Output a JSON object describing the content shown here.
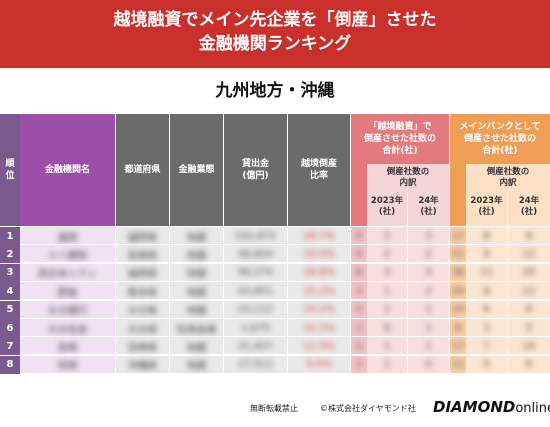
{
  "title": {
    "line1": "越境融資でメイン先企業を「倒産」させた",
    "line2": "金融機関ランキング"
  },
  "region": "九州地方・沖縄",
  "headers": {
    "rank": "順位",
    "name": "金融機関名",
    "pref": "都道府県",
    "type": "金融業態",
    "loans": "貸出金\n(億円)",
    "ratio": "越境倒産\n比率",
    "group1": "「越境融資」で\n倒産させた社数の\n合計(社)",
    "group1_sub": "倒産社数の\n内訳",
    "group2": "メインバンクとして\n倒産させた社数の\n合計(社)",
    "group2_sub": "倒産社数の\n内訳",
    "year_2023": "2023年\n(社)",
    "year_24": "24年\n(社)"
  },
  "rows": [
    {
      "rank": "1",
      "name": "福岡",
      "pref": "福岡県",
      "type": "地銀",
      "loans": "152,872",
      "ratio": "28.7%",
      "g1": "5",
      "g1a": "2",
      "g1b": "3",
      "g2": "17",
      "g2a": "8",
      "g2b": "9"
    },
    {
      "rank": "2",
      "name": "十八親和",
      "pref": "長崎県",
      "type": "地銀",
      "loans": "46,824",
      "ratio": "19.0%",
      "g1": "4",
      "g1a": "2",
      "g1b": "2",
      "g2": "21",
      "g2a": "9",
      "g2b": "12"
    },
    {
      "rank": "3",
      "name": "西日本シティ",
      "pref": "福岡県",
      "type": "地銀",
      "loans": "90,274",
      "ratio": "16.8%",
      "g1": "6",
      "g1a": "3",
      "g1b": "3",
      "g2": "36",
      "g2a": "11",
      "g2b": "25"
    },
    {
      "rank": "4",
      "name": "肥後",
      "pref": "熊本県",
      "type": "地銀",
      "loans": "43,651",
      "ratio": "15.2%",
      "g1": "3",
      "g1a": "1",
      "g1b": "2",
      "g2": "20",
      "g2a": "8",
      "g2b": "12"
    },
    {
      "rank": "5",
      "name": "大分銀行",
      "pref": "大分県",
      "type": "地銀",
      "loans": "23,112",
      "ratio": "14.2%",
      "g1": "2",
      "g1a": "1",
      "g1b": "1",
      "g2": "14",
      "g2a": "6",
      "g2b": "8"
    },
    {
      "rank": "6",
      "name": "大分信金",
      "pref": "大分県",
      "type": "信用金庫",
      "loans": "1,675",
      "ratio": "12.1%",
      "g1": "1",
      "g1a": "0",
      "g1b": "1",
      "g2": "8",
      "g2a": "3",
      "g2b": "5"
    },
    {
      "rank": "7",
      "name": "宮崎",
      "pref": "宮崎県",
      "type": "地銀",
      "loans": "21,427",
      "ratio": "11.5%",
      "g1": "2",
      "g1a": "1",
      "g1b": "1",
      "g2": "17",
      "g2a": "7",
      "g2b": "10"
    },
    {
      "rank": "8",
      "name": "琉球",
      "pref": "沖縄県",
      "type": "地銀",
      "loans": "17,512",
      "ratio": "9.4%",
      "g1": "1",
      "g1a": "1",
      "g1b": "0",
      "g2": "11",
      "g2a": "5",
      "g2b": "6"
    }
  ],
  "footer": {
    "note": "無断転載禁止",
    "copy": "©株式会社ダイヤモンド社",
    "logo_main": "DIAMOND",
    "logo_sub": "online"
  },
  "colors": {
    "banner": "#c9302c",
    "rank_col": "#7a5a8c",
    "name_col": "#9b4fa8",
    "dark_cols": "#6b6b6b",
    "group1": "#e27a80",
    "group1_light": "#f5d6d8",
    "group2": "#ef9e55",
    "group2_light": "#fbe0c6"
  }
}
